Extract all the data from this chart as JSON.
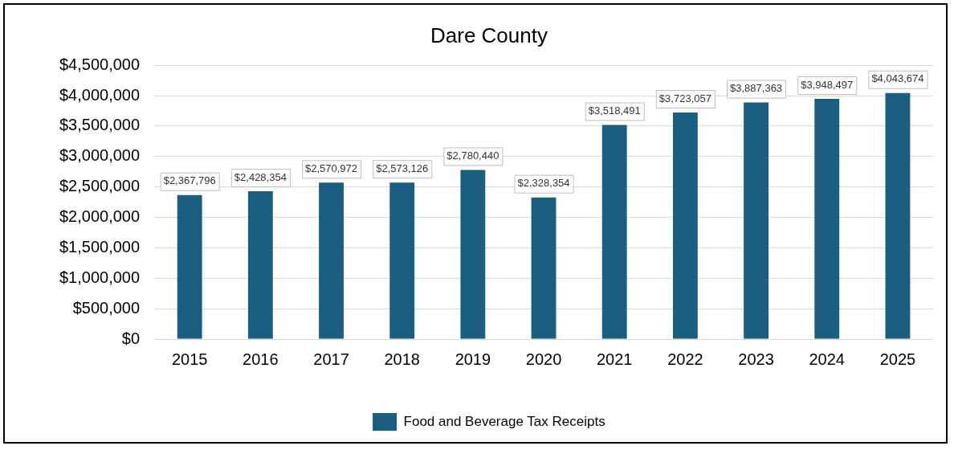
{
  "chart_data": {
    "type": "bar",
    "title": "Dare County",
    "categories": [
      "2015",
      "2016",
      "2017",
      "2018",
      "2019",
      "2020",
      "2021",
      "2022",
      "2023",
      "2024",
      "2025"
    ],
    "series": [
      {
        "name": "Food and Beverage Tax Receipts",
        "color": "#1b5e80",
        "values": [
          2367796,
          2428354,
          2570972,
          2573126,
          2780440,
          2328354,
          3518491,
          3723057,
          3887363,
          3948497,
          4043674
        ],
        "value_labels": [
          "$2,367,796",
          "$2,428,354",
          "$2,570,972",
          "$2,573,126",
          "$2,780,440",
          "$2,328,354",
          "$3,518,491",
          "$3,723,057",
          "$3,887,363",
          "$3,948,497",
          "$4,043,674"
        ]
      }
    ],
    "ylim": [
      0,
      4500000
    ],
    "yticks": [
      {
        "value": 0,
        "label": "$0"
      },
      {
        "value": 500000,
        "label": "$500,000"
      },
      {
        "value": 1000000,
        "label": "$1,000,000"
      },
      {
        "value": 1500000,
        "label": "$1,500,000"
      },
      {
        "value": 2000000,
        "label": "$2,000,000"
      },
      {
        "value": 2500000,
        "label": "$2,500,000"
      },
      {
        "value": 3000000,
        "label": "$3,000,000"
      },
      {
        "value": 3500000,
        "label": "$3,500,000"
      },
      {
        "value": 4000000,
        "label": "$4,000,000"
      },
      {
        "value": 4500000,
        "label": "$4,500,000"
      }
    ],
    "grid": "y",
    "legend": "bottom"
  }
}
